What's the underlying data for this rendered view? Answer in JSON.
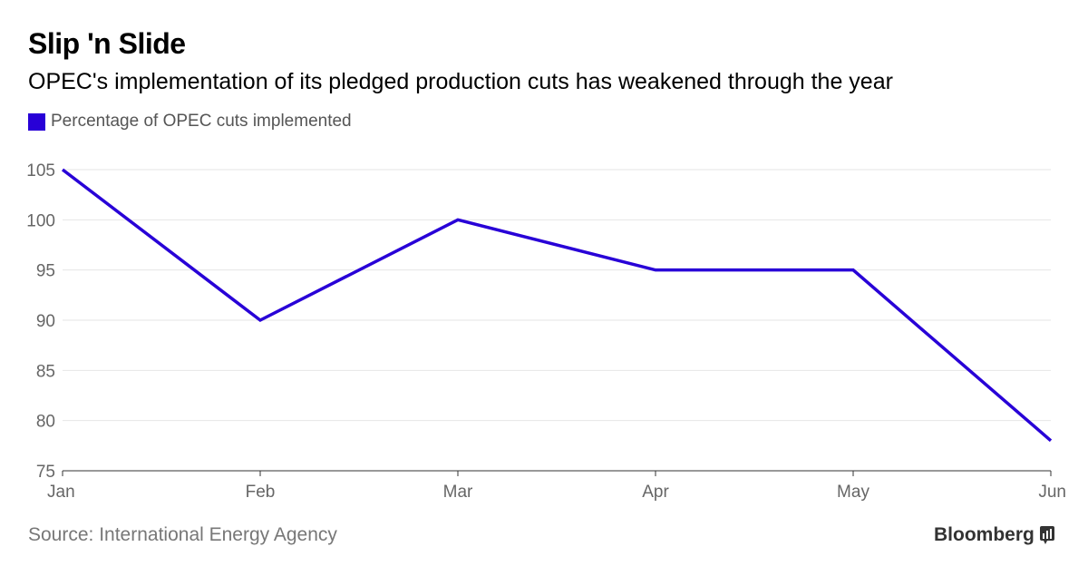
{
  "header": {
    "title": "Slip 'n Slide",
    "subtitle": "OPEC's implementation of its pledged production cuts has weakened through the year"
  },
  "legend": {
    "label": "Percentage of OPEC cuts implemented",
    "color": "#2800d7"
  },
  "footer": {
    "source": "Source: International Energy Agency",
    "brand": "Bloomberg",
    "brand_icon": "bloomberg-terminal-icon"
  },
  "colors": {
    "line": "#2800d7",
    "grid": "#e6e6e6",
    "axis": "#333333",
    "tick_text": "#666666"
  },
  "chart_data": {
    "type": "line",
    "categories": [
      "Jan",
      "Feb",
      "Mar",
      "Apr",
      "May",
      "Jun"
    ],
    "series": [
      {
        "name": "Percentage of OPEC cuts implemented",
        "values": [
          105,
          90,
          100,
          95,
          95,
          78
        ]
      }
    ],
    "ylim": [
      75,
      105
    ],
    "yticks": [
      75,
      80,
      85,
      90,
      95,
      100,
      105
    ],
    "grid": true,
    "legend_position": "top-left",
    "title": "Slip 'n Slide",
    "subtitle": "OPEC's implementation of its pledged production cuts has weakened through the year",
    "xlabel": "",
    "ylabel": ""
  }
}
